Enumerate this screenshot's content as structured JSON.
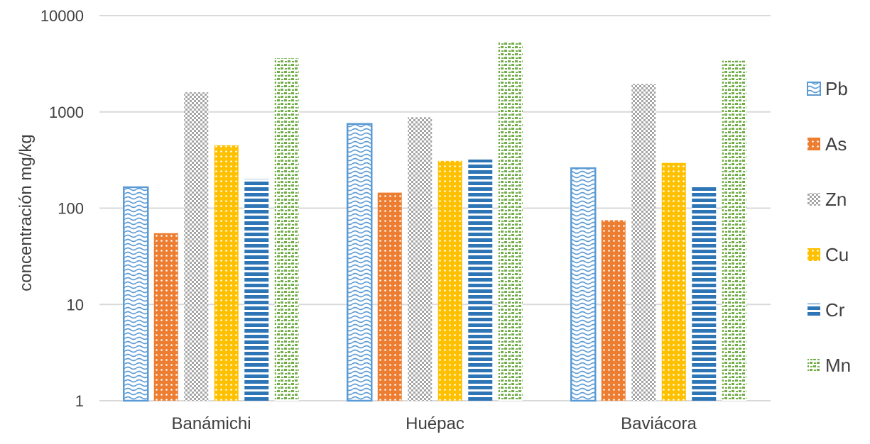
{
  "chart_data": {
    "type": "bar",
    "title": "",
    "xlabel": "",
    "ylabel": "concentración  mg/kg",
    "yscale": "log",
    "ylim": [
      1,
      10000
    ],
    "yticks": [
      "1",
      "10",
      "100",
      "1000",
      "10000"
    ],
    "categories": [
      "Banámichi",
      "Huépac",
      "Baviácora"
    ],
    "grid": true,
    "legend_position": "right",
    "series": [
      {
        "name": "Pb",
        "values": [
          165,
          750,
          260
        ],
        "color": "#5b9bd5",
        "pattern": "wave"
      },
      {
        "name": "As",
        "values": [
          55,
          145,
          75
        ],
        "color": "#ed7d31",
        "pattern": "dots"
      },
      {
        "name": "Zn",
        "values": [
          1600,
          880,
          1950
        ],
        "color": "#a5a5a5",
        "pattern": "checker"
      },
      {
        "name": "Cu",
        "values": [
          450,
          310,
          295
        ],
        "color": "#ffc000",
        "pattern": "dots"
      },
      {
        "name": "Cr",
        "values": [
          200,
          320,
          170
        ],
        "color": "#2e75b6",
        "pattern": "hlines"
      },
      {
        "name": "Mn",
        "values": [
          3600,
          5300,
          3400
        ],
        "color": "#70ad47",
        "pattern": "confetti"
      }
    ]
  }
}
